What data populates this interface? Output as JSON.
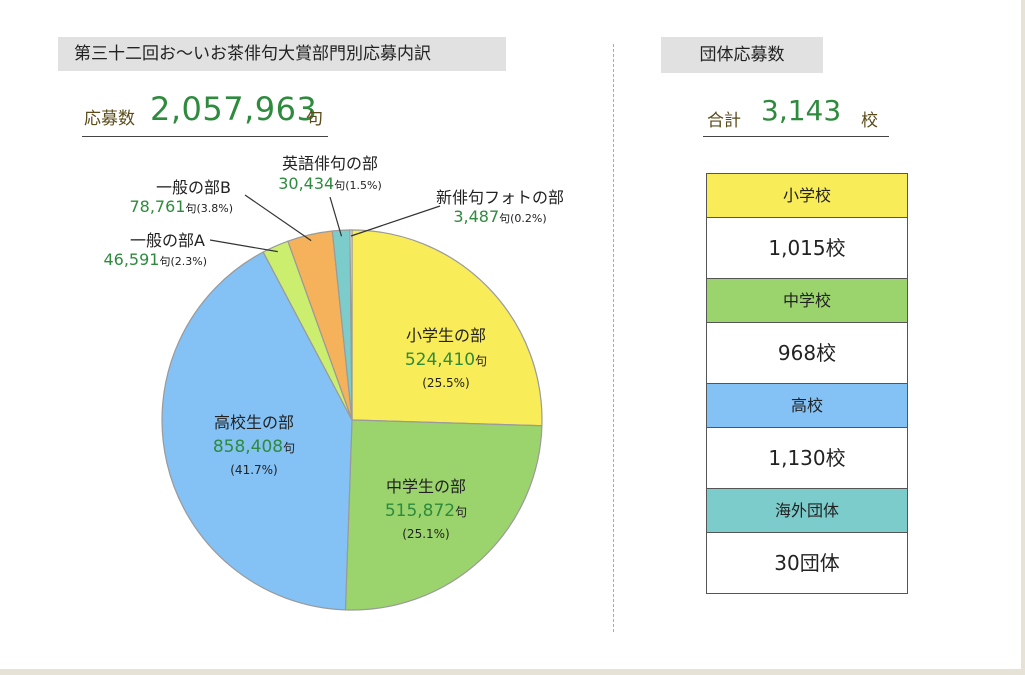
{
  "title": "第三十二回お～いお茶俳句大賞部門別応募内訳",
  "total": {
    "label": "応募数",
    "value": "2,057,963",
    "unit": "句"
  },
  "chart_data": {
    "type": "pie",
    "slices": [
      {
        "name": "小学生の部",
        "value": 524410,
        "value_text": "524,410",
        "unit": "句",
        "percent": "(25.5%)",
        "color": "#f9ec59"
      },
      {
        "name": "中学生の部",
        "value": 515872,
        "value_text": "515,872",
        "unit": "句",
        "percent": "(25.1%)",
        "color": "#9bd46c"
      },
      {
        "name": "高校生の部",
        "value": 858408,
        "value_text": "858,408",
        "unit": "句",
        "percent": "(41.7%)",
        "color": "#84c1f5"
      },
      {
        "name": "一般の部A",
        "value": 46591,
        "value_text": "46,591",
        "unit": "句",
        "percent": "(2.3%)",
        "color": "#cbee6f"
      },
      {
        "name": "一般の部B",
        "value": 78761,
        "value_text": "78,761",
        "unit": "句",
        "percent": "(3.8%)",
        "color": "#f5b25a"
      },
      {
        "name": "英語俳句の部",
        "value": 30434,
        "value_text": "30,434",
        "unit": "句",
        "percent": "(1.5%)",
        "color": "#7dcccc"
      },
      {
        "name": "新俳句フォトの部",
        "value": 3487,
        "value_text": "3,487",
        "unit": "句",
        "percent": "(0.2%)",
        "color": "#f3f3f3"
      }
    ]
  },
  "group": {
    "title": "団体応募数",
    "total_label": "合計",
    "total_value": "3,143",
    "total_unit": "校",
    "rows": [
      {
        "label": "小学校",
        "value": "1,015校",
        "color": "#f9ec59"
      },
      {
        "label": "中学校",
        "value": "968校",
        "color": "#9bd46c"
      },
      {
        "label": "高校",
        "value": "1,130校",
        "color": "#84c1f5"
      },
      {
        "label": "海外団体",
        "value": "30団体",
        "color": "#7dcccc"
      }
    ]
  },
  "colors": {
    "accent_green": "#2e8b3e",
    "label_brown": "#5b4b1a"
  }
}
